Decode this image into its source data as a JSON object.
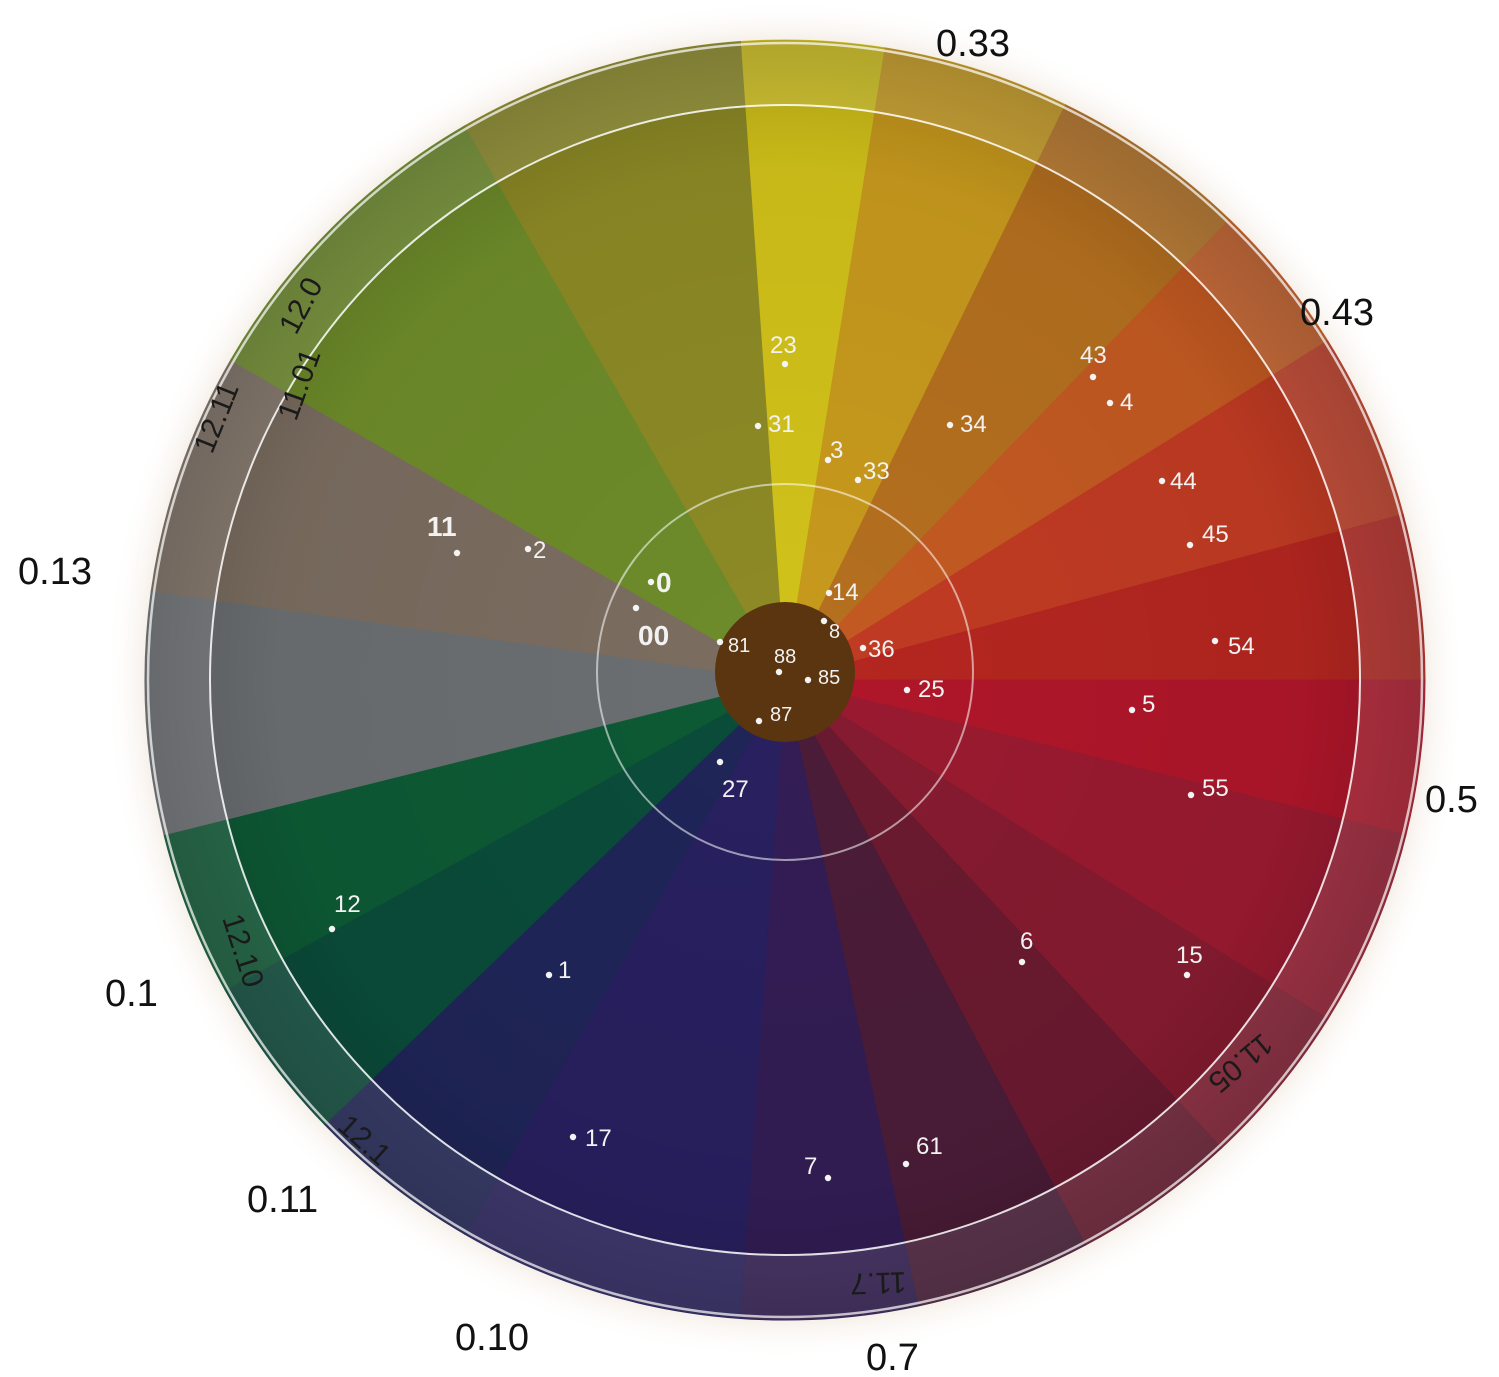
{
  "wheel": {
    "sectors": [
      {
        "name": "yellow",
        "color": "#d2c21a"
      },
      {
        "name": "gold",
        "color": "#c89a1d"
      },
      {
        "name": "amber",
        "color": "#b5701f"
      },
      {
        "name": "orange",
        "color": "#c45a22"
      },
      {
        "name": "orange-red",
        "color": "#c13b23"
      },
      {
        "name": "red",
        "color": "#b52620"
      },
      {
        "name": "crimson",
        "color": "#b0162a"
      },
      {
        "name": "deep-red",
        "color": "#9a1a30"
      },
      {
        "name": "wine",
        "color": "#861b30"
      },
      {
        "name": "maroon",
        "color": "#6b1a30"
      },
      {
        "name": "plum",
        "color": "#4b1c38"
      },
      {
        "name": "purple",
        "color": "#331d55"
      },
      {
        "name": "indigo",
        "color": "#282060"
      },
      {
        "name": "navy",
        "color": "#1f2558"
      },
      {
        "name": "dark-green",
        "color": "#0a4c3a"
      },
      {
        "name": "green",
        "color": "#0d5a35"
      },
      {
        "name": "grey",
        "color": "#6b6f72"
      },
      {
        "name": "taupe",
        "color": "#7b6d60"
      },
      {
        "name": "olive-green",
        "color": "#6e8c2a"
      },
      {
        "name": "olive",
        "color": "#8d8a26"
      }
    ],
    "center_color": "#5a3510",
    "outer_labels": [
      "0.33",
      "0.43",
      "0.5",
      "0.7",
      "0.10",
      "0.11",
      "0.1",
      "0.13"
    ],
    "rim_labels": [
      "12.0",
      "11.01",
      "12.11",
      "12.10",
      "12.1",
      "11.7",
      "11.05"
    ],
    "points": [
      {
        "label": "23"
      },
      {
        "label": "31"
      },
      {
        "label": "3"
      },
      {
        "label": "33"
      },
      {
        "label": "34"
      },
      {
        "label": "43"
      },
      {
        "label": "4"
      },
      {
        "label": "44"
      },
      {
        "label": "45"
      },
      {
        "label": "54"
      },
      {
        "label": "5"
      },
      {
        "label": "55"
      },
      {
        "label": "25"
      },
      {
        "label": "36"
      },
      {
        "label": "14"
      },
      {
        "label": "8"
      },
      {
        "label": "85"
      },
      {
        "label": "88"
      },
      {
        "label": "87"
      },
      {
        "label": "81"
      },
      {
        "label": "0"
      },
      {
        "label": "00"
      },
      {
        "label": "11"
      },
      {
        "label": "2"
      },
      {
        "label": "27"
      },
      {
        "label": "12"
      },
      {
        "label": "1"
      },
      {
        "label": "17"
      },
      {
        "label": "7"
      },
      {
        "label": "61"
      },
      {
        "label": "6"
      },
      {
        "label": "15"
      }
    ]
  }
}
